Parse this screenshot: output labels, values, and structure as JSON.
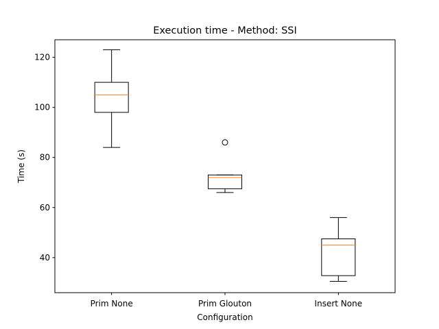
{
  "chart_data": {
    "type": "box",
    "title": "Execution time - Method: SSI",
    "xlabel": "Configuration",
    "ylabel": "Time (s)",
    "ylim": [
      26,
      127
    ],
    "yticks": [
      40,
      60,
      80,
      100,
      120
    ],
    "yticklabels": [
      "40",
      "60",
      "80",
      "100",
      "120"
    ],
    "categories": [
      "Prim None",
      "Prim Glouton",
      "Insert None"
    ],
    "boxes": [
      {
        "whisker_low": 84,
        "q1": 98,
        "median": 105,
        "q3": 110,
        "whisker_high": 123,
        "outliers": []
      },
      {
        "whisker_low": 66,
        "q1": 67.5,
        "median": 72,
        "q3": 73,
        "whisker_high": 73,
        "outliers": [
          86
        ]
      },
      {
        "whisker_low": 30.5,
        "q1": 32.8,
        "median": 45,
        "q3": 47.5,
        "whisker_high": 56,
        "outliers": []
      }
    ],
    "grid": false,
    "colors": {
      "box": "#000000",
      "median": "#ff7f0e",
      "background": "#ffffff"
    }
  }
}
